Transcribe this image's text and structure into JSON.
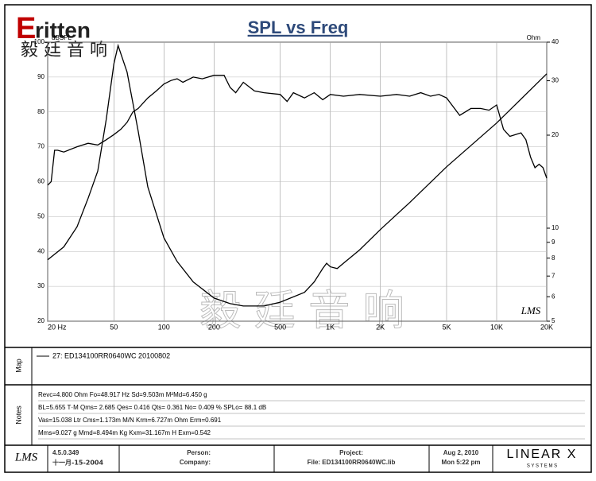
{
  "chart_data": {
    "type": "line",
    "title": "SPL vs Freq",
    "ylabel": "dBSPL",
    "y2label": "Ohm",
    "xlog": true,
    "y2log": true,
    "grid": true,
    "color": "#000000",
    "xlim": [
      20,
      20000
    ],
    "xticks": [
      {
        "value": 20,
        "label": "20 Hz"
      },
      50,
      100,
      200,
      500,
      {
        "value": 1000,
        "label": "1K"
      },
      {
        "value": 2000,
        "label": "2K"
      },
      {
        "value": 5000,
        "label": "5K"
      },
      {
        "value": 10000,
        "label": "10K"
      },
      {
        "value": 20000,
        "label": "20K"
      }
    ],
    "ylim": [
      20,
      100
    ],
    "yticks": [
      20,
      30,
      40,
      50,
      60,
      70,
      80,
      90,
      100
    ],
    "y2lim": [
      5,
      40
    ],
    "y2ticks": [
      5,
      6,
      7,
      8,
      9,
      10,
      20,
      30,
      40
    ],
    "series": [
      {
        "color": "#000000",
        "x": [
          20,
          21,
          22,
          23,
          25,
          30,
          35,
          40,
          45,
          50,
          55,
          60,
          65,
          70,
          80,
          90,
          100,
          110,
          120,
          130,
          150,
          170,
          200,
          230,
          250,
          270,
          300,
          350,
          400,
          500,
          550,
          600,
          700,
          800,
          900,
          1000,
          1200,
          1500,
          2000,
          2500,
          3000,
          3500,
          4000,
          4500,
          5000,
          6000,
          7000,
          8000,
          9000,
          10000,
          11000,
          12000,
          13000,
          14000,
          15000,
          16000,
          17000,
          18000,
          19000,
          20000
        ],
        "values": [
          59,
          60,
          69,
          69,
          68.5,
          70,
          71,
          70.5,
          72,
          73.5,
          75,
          77,
          80,
          81,
          84,
          86,
          88,
          89,
          89.5,
          88.5,
          90,
          89.5,
          90.5,
          90.5,
          87,
          85.5,
          88.5,
          86,
          85.5,
          85,
          83,
          85.5,
          84,
          85.5,
          83.5,
          85,
          84.5,
          85,
          84.5,
          85,
          84.5,
          85.5,
          84.5,
          85,
          84,
          79,
          81,
          81,
          80.5,
          82,
          75,
          73,
          73.5,
          74,
          72,
          67,
          64,
          65,
          64,
          61
        ]
      },
      {
        "color": "#000000",
        "axis": "y2",
        "x": [
          20,
          25,
          30,
          35,
          40,
          45,
          50,
          53,
          60,
          70,
          80,
          100,
          120,
          150,
          200,
          250,
          300,
          400,
          500,
          700,
          800,
          900,
          950,
          1000,
          1100,
          1200,
          1500,
          2000,
          3000,
          5000,
          10000,
          20000
        ],
        "values": [
          7.9,
          8.7,
          10.1,
          12.5,
          15.3,
          22.5,
          34,
          39,
          32,
          20.6,
          13.6,
          9.3,
          7.8,
          6.7,
          5.94,
          5.7,
          5.6,
          5.6,
          5.76,
          6.2,
          6.7,
          7.4,
          7.7,
          7.5,
          7.4,
          7.7,
          8.5,
          9.9,
          12.1,
          15.8,
          21.9,
          31.6
        ]
      }
    ]
  },
  "logo": {
    "brand": "ritten",
    "chinese": "毅 廷 音 响",
    "watermark": "毅 廷 音 响",
    "lms": "LMS"
  },
  "map": {
    "label": "Map",
    "entry": "27: ED134100RR0640WC    20100802"
  },
  "notes": {
    "label": "Notes",
    "lines": [
      "Revc=4.800 Ohm  Fo=48.917 Hz  Sd=9.503m M²Md=6.450 g",
      "BL=5.655 T·M  Qms= 2.685  Qes= 0.416  Qts= 0.361  No= 0.409 %  SPLo= 88.1 dB",
      "Vas=15.038 Ltr  Cms=1.173m M/N  Krm=6.727m Ohm  Erm=0.691",
      "Mms=9.027 g  Mmd=8.494m Kg  Kxm=31.167m H  Exm=0.542"
    ]
  },
  "footer": {
    "lms": "LMS",
    "version": "4.5.0.349",
    "build": "十一月-15-2004",
    "person": "Person:",
    "company": "Company:",
    "project": "Project:",
    "file": "File: ED134100RR0640WC.lib",
    "date": "Aug 2, 2010",
    "time": "Mon  5:22 pm",
    "brand": "LINEAR X",
    "brand_sub": "S Y S T E M S"
  }
}
